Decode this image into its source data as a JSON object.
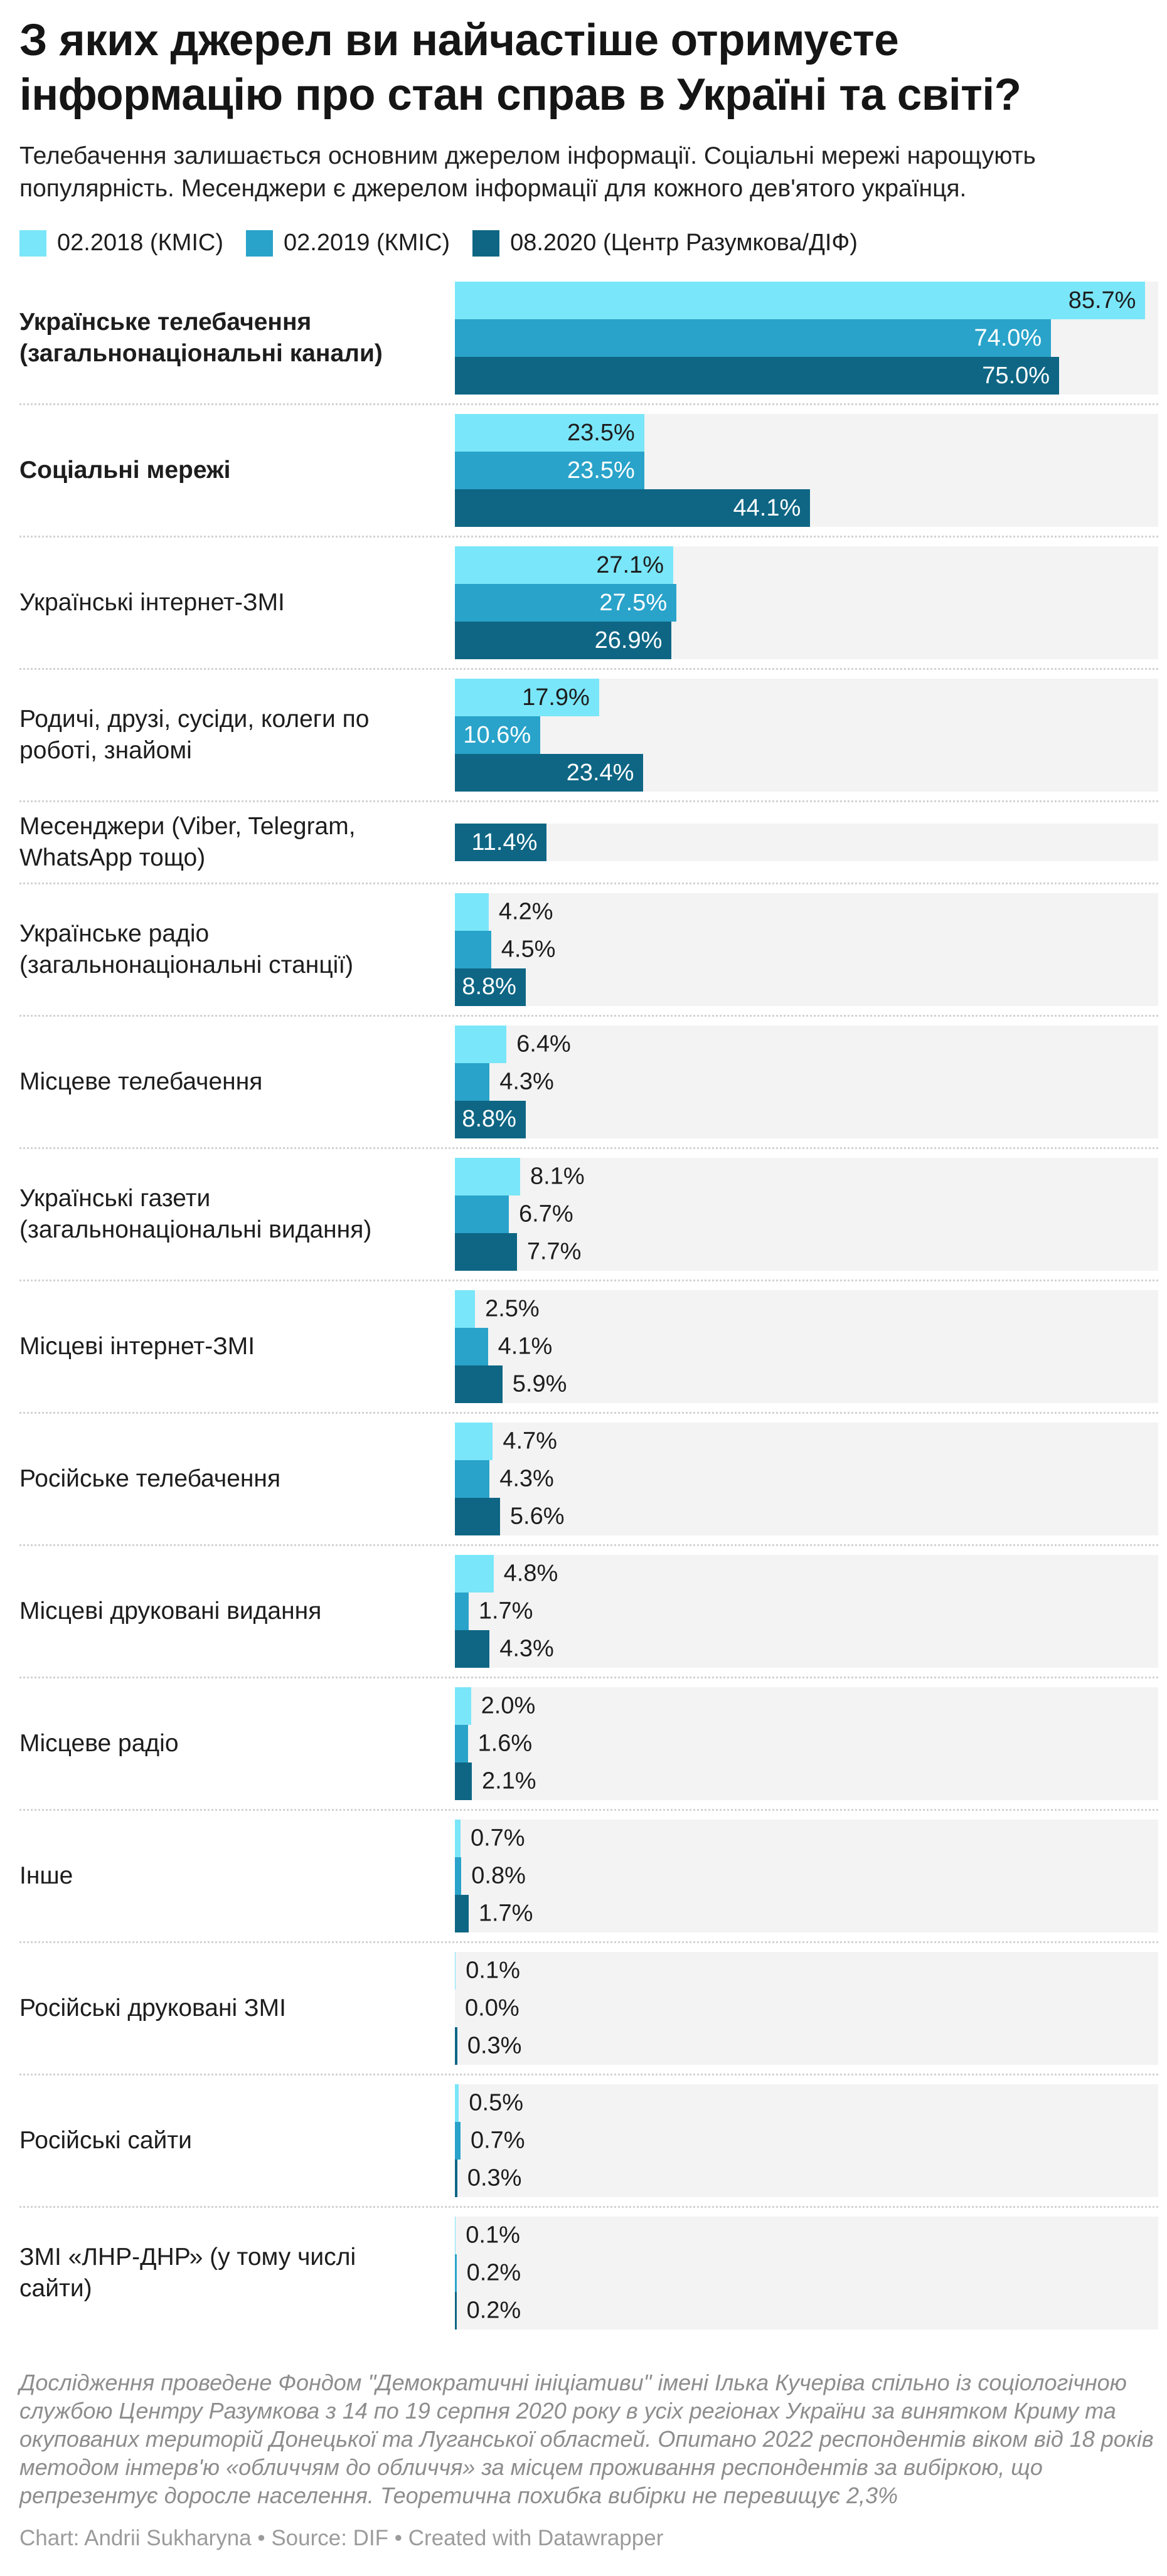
{
  "title": "З яких джерел ви найчастіше отримуєте інформацію про стан справ в Україні та світі?",
  "subtitle": "Телебачення залишається основним джерелом інформації. Соціальні мережі нарощують популярність. Месенджери є джерелом інформації для кожного дев'ятого українця.",
  "chart_data": {
    "type": "bar",
    "orientation": "horizontal",
    "value_suffix": "%",
    "grid": false,
    "legend_position": "top",
    "track_color": "#f3f3f3",
    "xmax_percent_full_track": 87.3,
    "inside_label_threshold": 8.5,
    "series": [
      {
        "name": "02.2018 (КМІС)",
        "color": "#7ae6f9"
      },
      {
        "name": "02.2019 (КМІС)",
        "color": "#29a3ca"
      },
      {
        "name": "08.2020 (Центр Разумкова/ДІФ)",
        "color": "#0e6684"
      }
    ],
    "rows": [
      {
        "label": "Українське телебачення (загальнонаціональні канали)",
        "bold": true,
        "values": [
          85.7,
          74.0,
          75.0
        ]
      },
      {
        "label": "Соціальні мережі",
        "bold": true,
        "values": [
          23.5,
          23.5,
          44.1
        ]
      },
      {
        "label": "Українські інтернет-ЗМІ",
        "bold": false,
        "values": [
          27.1,
          27.5,
          26.9
        ]
      },
      {
        "label": "Родичі, друзі, сусіди, колеги по роботі, знайомі",
        "bold": false,
        "values": [
          17.9,
          10.6,
          23.4
        ]
      },
      {
        "label": "Месенджери (Viber, Telegram, WhatsApp тощо)",
        "bold": false,
        "values": [
          null,
          null,
          11.4
        ]
      },
      {
        "label": "Українське радіо (загальнонаціональні станції)",
        "bold": false,
        "values": [
          4.2,
          4.5,
          8.8
        ]
      },
      {
        "label": "Місцеве телебачення",
        "bold": false,
        "values": [
          6.4,
          4.3,
          8.8
        ]
      },
      {
        "label": "Українські газети (загальнонаціональні видання)",
        "bold": false,
        "values": [
          8.1,
          6.7,
          7.7
        ]
      },
      {
        "label": "Місцеві інтернет-ЗМІ",
        "bold": false,
        "values": [
          2.5,
          4.1,
          5.9
        ]
      },
      {
        "label": "Російське телебачення",
        "bold": false,
        "values": [
          4.7,
          4.3,
          5.6
        ]
      },
      {
        "label": "Місцеві друковані видання",
        "bold": false,
        "values": [
          4.8,
          1.7,
          4.3
        ]
      },
      {
        "label": "Місцеве радіо",
        "bold": false,
        "values": [
          2.0,
          1.6,
          2.1
        ]
      },
      {
        "label": "Інше",
        "bold": false,
        "values": [
          0.7,
          0.8,
          1.7
        ]
      },
      {
        "label": "Російські друковані ЗМІ",
        "bold": false,
        "values": [
          0.1,
          0.0,
          0.3
        ]
      },
      {
        "label": "Російські сайти",
        "bold": false,
        "values": [
          0.5,
          0.7,
          0.3
        ]
      },
      {
        "label": "ЗМІ «ЛНР-ДНР» (у тому числі сайти)",
        "bold": false,
        "values": [
          0.1,
          0.2,
          0.2
        ]
      }
    ]
  },
  "footer": {
    "note": "Дослідження проведене Фондом \"Демократичні ініціативи\" імені Ілька Кучеріва спільно із соціологічною службою Центру Разумкова з 14 по 19 серпня 2020 року в усіх регіонах України за винятком Криму та окупованих територій Донецької та Луганської областей. Опитано 2022 респондентів віком від 18 років методом інтерв'ю «обличчям до обличчя» за місцем проживання респондентів за вибіркою, що репрезентує доросле населення. Теоретична похибка вибірки не перевищує 2,3%",
    "byline": "Chart: Andrii Sukharyna • Source: DIF • Created with Datawrapper"
  },
  "style": {
    "label_color": "#1d1d1d",
    "inside_label_light": "#ffffff",
    "separator_color": "#d2d2d2"
  }
}
